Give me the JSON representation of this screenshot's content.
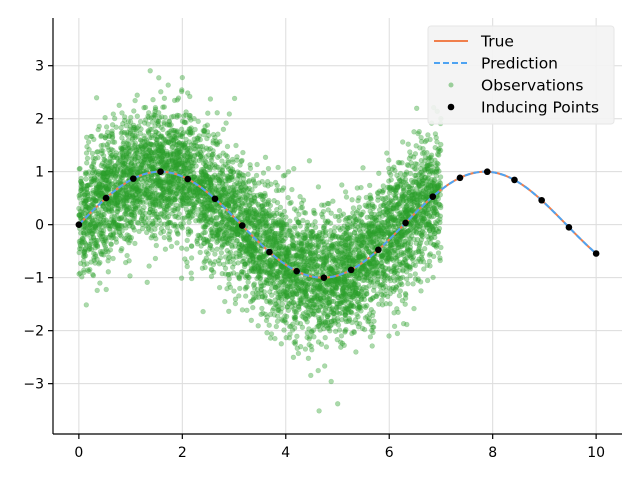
{
  "chart_data": {
    "type": "scatter",
    "title": "",
    "xlabel": "",
    "ylabel": "",
    "xlim": [
      -0.5,
      10.5
    ],
    "ylim": [
      -3.95,
      3.9
    ],
    "xticks": [
      0,
      2,
      4,
      6,
      8,
      10
    ],
    "yticks": [
      -3,
      -2,
      -1,
      0,
      1,
      2,
      3
    ],
    "xtick_labels": [
      "0",
      "2",
      "4",
      "6",
      "8",
      "10"
    ],
    "ytick_labels": [
      "−3",
      "−2",
      "−1",
      "0",
      "1",
      "2",
      "3"
    ],
    "grid": true,
    "legend_position": "top-right",
    "series": [
      {
        "name": "True",
        "kind": "line",
        "function": "sin(x)",
        "x_range": [
          0,
          10
        ],
        "color": "#f07f4c",
        "style": "solid"
      },
      {
        "name": "Prediction",
        "kind": "line",
        "function": "sin(x)",
        "x_range": [
          0,
          10
        ],
        "color": "#4ea3f2",
        "style": "dashed"
      },
      {
        "name": "Observations",
        "kind": "scatter",
        "mean_function": "sin(x)",
        "x_range": [
          0,
          7
        ],
        "noise_sd": 0.6,
        "color": "#2ca02c",
        "alpha": 0.4
      },
      {
        "name": "Inducing Points",
        "kind": "scatter",
        "color": "#000000",
        "x": [
          0,
          0.526,
          1.053,
          1.579,
          2.105,
          2.632,
          3.158,
          3.684,
          4.211,
          4.737,
          5.263,
          5.789,
          6.316,
          6.842,
          7.368,
          7.895,
          8.421,
          8.947,
          9.474,
          10.0
        ],
        "y": [
          0,
          0.502,
          0.869,
          1.0,
          0.861,
          0.489,
          -0.017,
          -0.516,
          -0.877,
          -1.0,
          -0.853,
          -0.475,
          0.033,
          0.529,
          0.885,
          0.999,
          0.845,
          0.461,
          -0.05,
          -0.544
        ]
      }
    ]
  }
}
